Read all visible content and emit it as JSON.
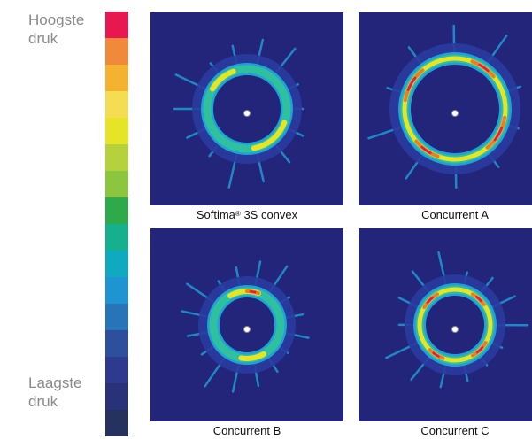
{
  "legend": {
    "high_line1": "Hoogste",
    "high_line2": "druk",
    "low_line1": "Laagste",
    "low_line2": "druk",
    "colors": [
      "#e8174f",
      "#f08a3a",
      "#f5b231",
      "#f4dc53",
      "#e6e426",
      "#b5d23c",
      "#8cc63f",
      "#2faa4a",
      "#16b08f",
      "#0faabf",
      "#1e94d2",
      "#2874b8",
      "#2d4f9e",
      "#2e3a8f",
      "#283279",
      "#25325e"
    ]
  },
  "panels": [
    {
      "caption_main": "Softima",
      "caption_reg": "®",
      "caption_rest": " 3S convex"
    },
    {
      "caption_main": "Concurrent A",
      "caption_reg": "",
      "caption_rest": ""
    },
    {
      "caption_main": "Concurrent B",
      "caption_reg": "",
      "caption_rest": ""
    },
    {
      "caption_main": "Concurrent C",
      "caption_reg": "",
      "caption_rest": ""
    }
  ],
  "colors": {
    "background_field": "#23257a",
    "low": "#2a3b9e",
    "mid_low": "#1fa0d8",
    "mid": "#2fc0a0",
    "mid_high": "#e6e426",
    "high": "#f07a2a",
    "max": "#e8174f"
  }
}
